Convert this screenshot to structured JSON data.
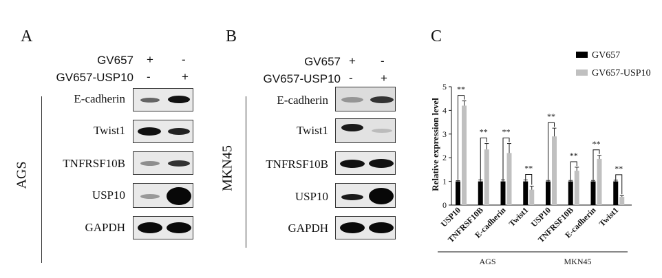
{
  "panels": {
    "a": "A",
    "b": "B",
    "c": "C"
  },
  "treatments": {
    "row1": {
      "label": "GV657",
      "lane1": "+",
      "lane2": "-"
    },
    "row2": {
      "label": "GV657-USP10",
      "lane1": "-",
      "lane2": "+"
    }
  },
  "cell_lines": {
    "ags": "AGS",
    "mkn45": "MKN45"
  },
  "blot_a": [
    "E-cadherin",
    "Twist1",
    "TNFRSF10B",
    "USP10",
    "GAPDH"
  ],
  "blot_b": [
    "E-cadherin",
    "Twist1",
    "TNFRSF10B",
    "USP10",
    "GAPDH"
  ],
  "chart_data": {
    "type": "bar",
    "ylabel": "Relative expression level",
    "ylim": [
      0,
      5
    ],
    "yticks": [
      0,
      1,
      2,
      3,
      4,
      5
    ],
    "categories": [
      "USP10",
      "TNFRSF10B",
      "E-cadherin",
      "Twist1",
      "USP10",
      "TNFRSF10B",
      "E-cadherin",
      "Twist1"
    ],
    "groups": [
      {
        "name": "AGS",
        "categories": [
          0,
          1,
          2,
          3
        ]
      },
      {
        "name": "MKN45",
        "categories": [
          4,
          5,
          6,
          7
        ]
      }
    ],
    "series": [
      {
        "name": "GV657",
        "color": "#000000",
        "values": [
          1,
          1,
          1,
          1,
          1,
          1,
          1,
          1
        ],
        "errors": [
          0.03,
          0.06,
          0.06,
          0.06,
          0.04,
          0.04,
          0.04,
          0.05
        ]
      },
      {
        "name": "GV657-USP10",
        "color": "#c0c0c0",
        "values": [
          4.2,
          2.35,
          2.2,
          0.65,
          2.9,
          1.45,
          1.95,
          0.35
        ],
        "errors": [
          0.2,
          0.25,
          0.4,
          0.15,
          0.35,
          0.15,
          0.15,
          0.05
        ]
      }
    ],
    "annotations": [
      "**",
      "**",
      "**",
      "**",
      "**",
      "**",
      "**",
      "**"
    ],
    "legend": "top-right"
  }
}
